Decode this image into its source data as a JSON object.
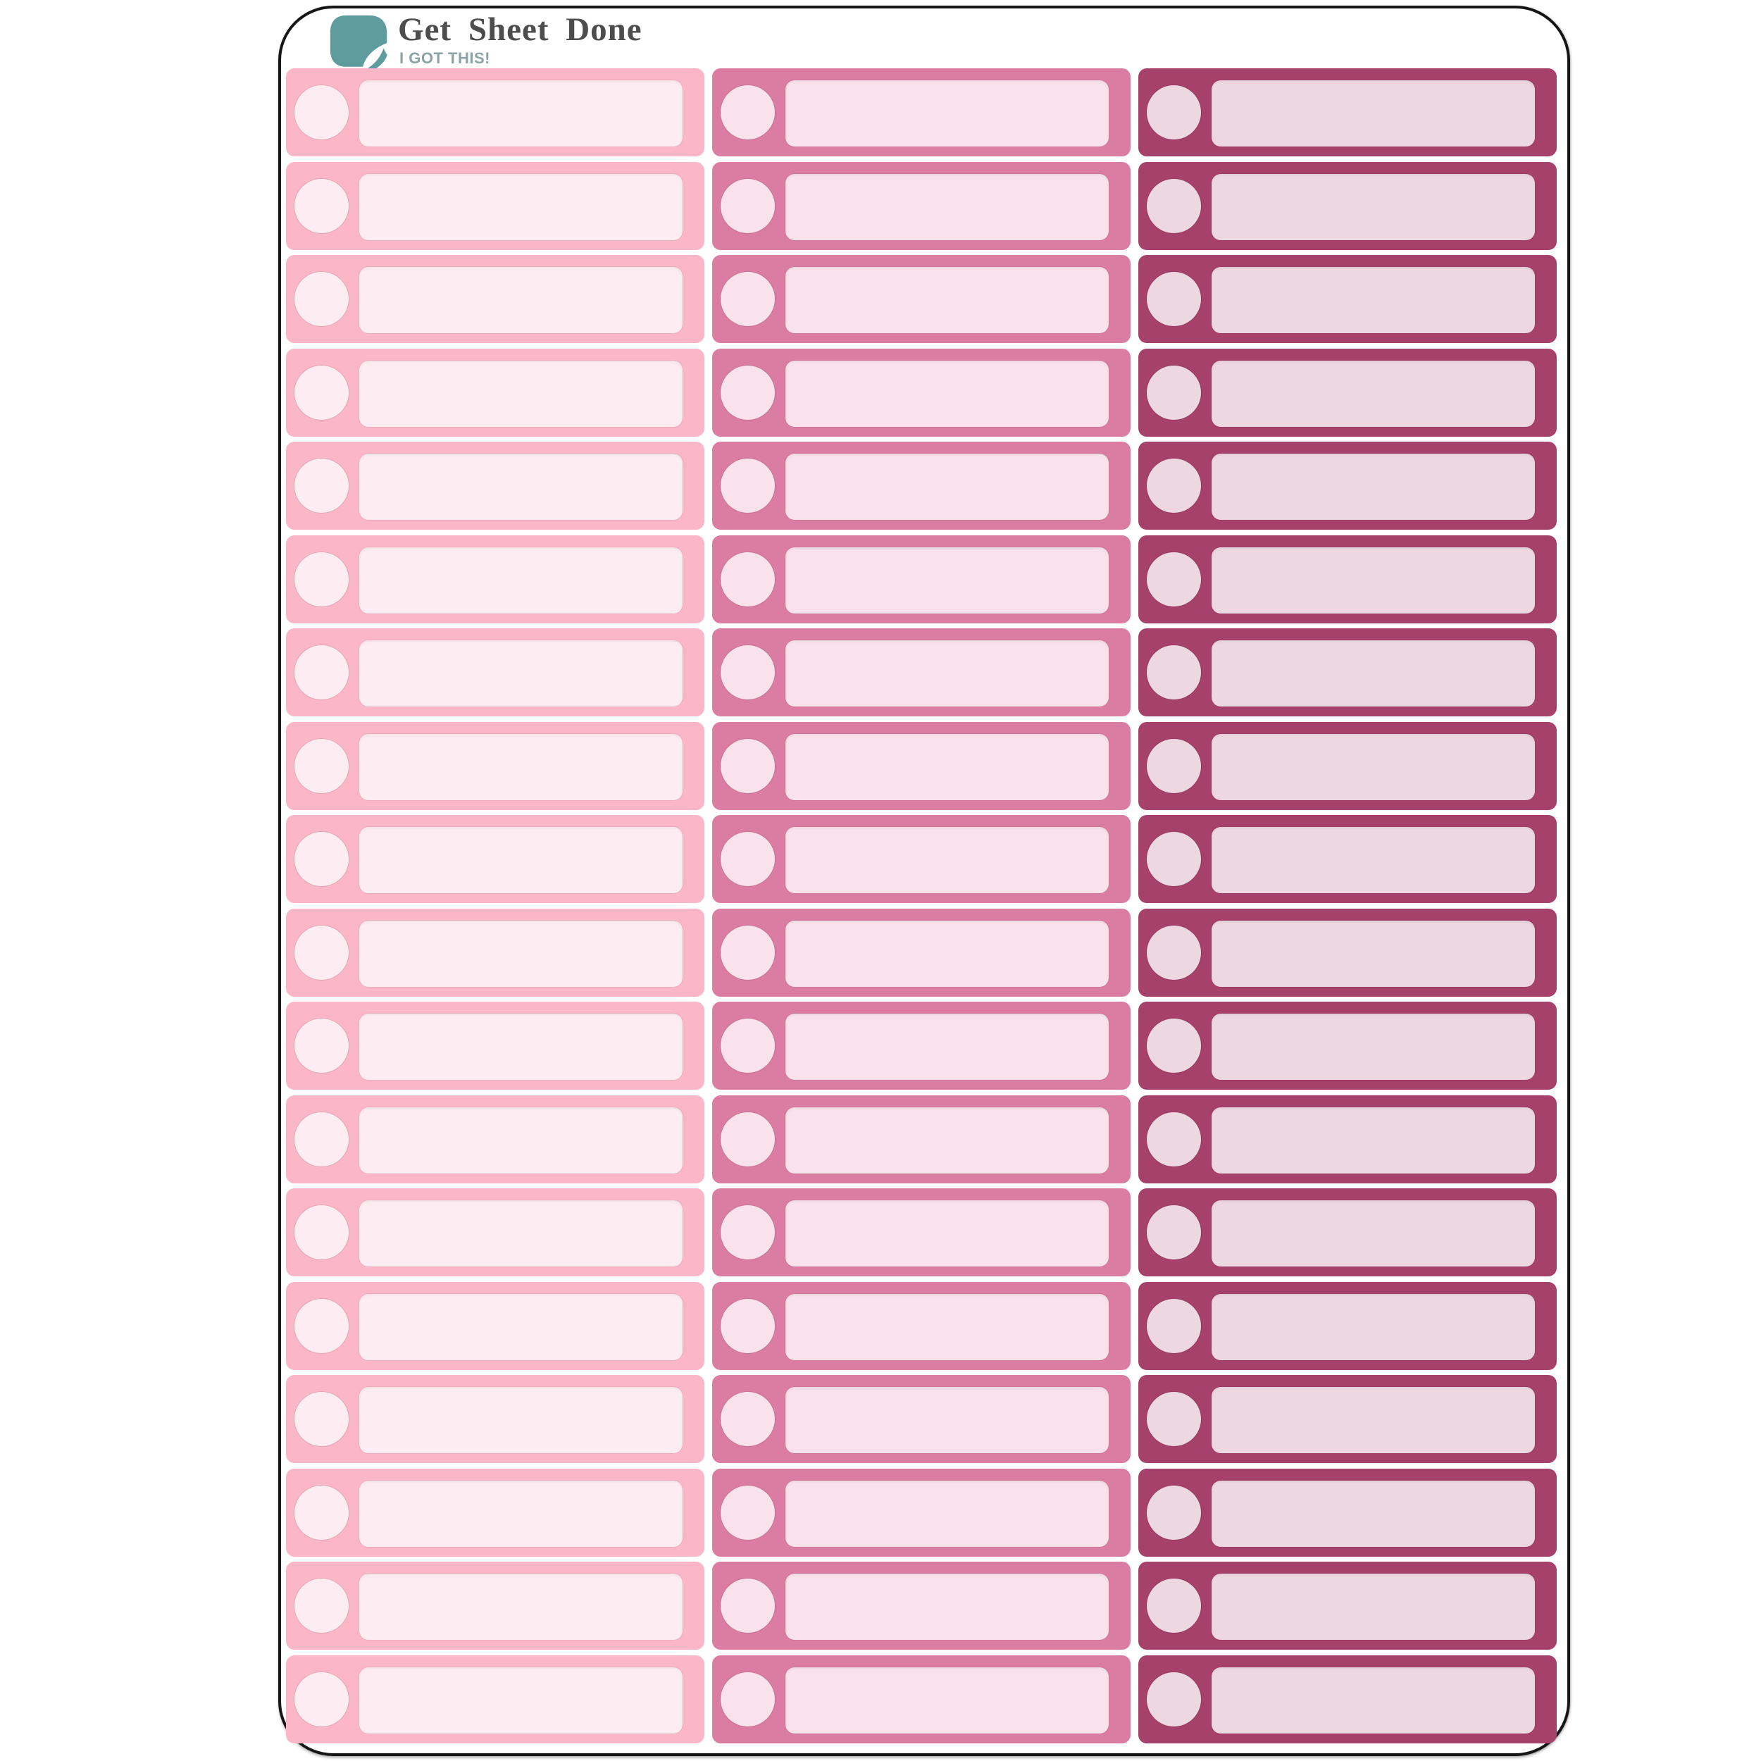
{
  "brand": {
    "name": "Get Sheet Done",
    "tagline": "I GOT THIS!",
    "icon": "page-flip-logo-icon",
    "colors": {
      "icon": "#5E9C9E",
      "name": "#4D4D4D",
      "tagline": "#8BA3A4"
    }
  },
  "sheet": {
    "type": "planner label sticker sheet",
    "background": "#FFFFFF",
    "border_color": "#161616",
    "rows": 18,
    "column_count": 3,
    "sticker_count": 54,
    "columns": [
      {
        "name": "light-pink",
        "base_color": "#FBB7C7",
        "fill_color": "#FDEDF2"
      },
      {
        "name": "rose-pink",
        "base_color": "#DB7DA3",
        "fill_color": "#F9E2EB"
      },
      {
        "name": "berry",
        "base_color": "#A6416C",
        "fill_color": "#EDD7E1"
      }
    ],
    "sticker_parts": [
      "checkpoint-circle",
      "writing-field"
    ]
  }
}
